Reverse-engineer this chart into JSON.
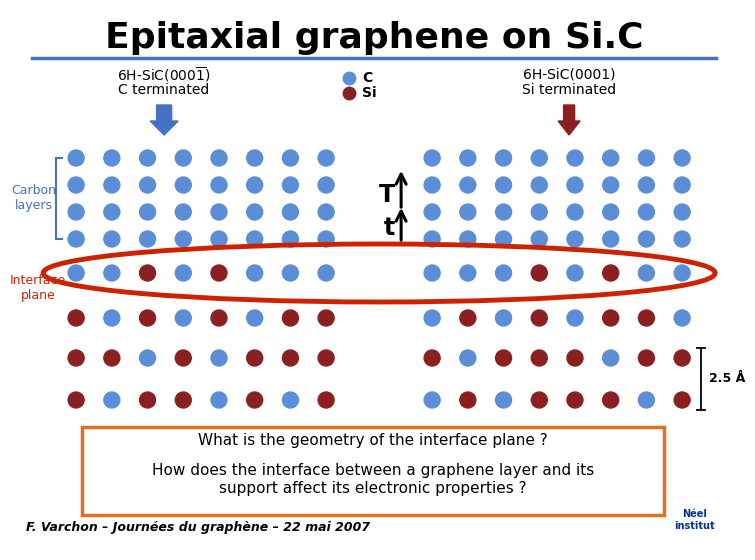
{
  "bg_color": "#ffffff",
  "title_color": "#000000",
  "header_line_color": "#4472c4",
  "carbon_color": "#5b8ed6",
  "silicon_color": "#8b2020",
  "interface_ellipse_color": "#cc2200",
  "carbon_layers_color": "#4472c4",
  "interface_label_color": "#cc2200",
  "arrow_left_color": "#4472c4",
  "arrow_right_color": "#8b2020",
  "question_box_color": "#e07020",
  "question1": "What is the geometry of the interface plane ?",
  "question2": "How does the interface between a graphene layer and its",
  "question3": "support affect its electronic properties ?",
  "footer": "F. Varchon – Journées du graphène – 22 mai 2007",
  "angstrom_label": "2.5 Å"
}
